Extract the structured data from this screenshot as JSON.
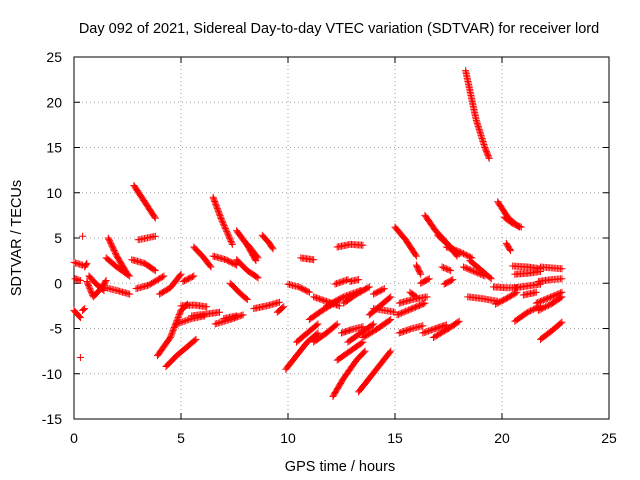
{
  "chart_data": {
    "type": "scatter",
    "title": "Day 092 of 2021, Sidereal Day-to-day VTEC variation (SDTVAR) for receiver lord",
    "xlabel": "GPS time / hours",
    "ylabel": "SDTVAR / TECUs",
    "xlim": [
      0,
      25
    ],
    "ylim": [
      -15,
      25
    ],
    "xticks": [
      "0",
      "5",
      "10",
      "15",
      "20",
      "25"
    ],
    "yticks": [
      "-15",
      "-10",
      "-5",
      "0",
      "5",
      "10",
      "15",
      "20",
      "25"
    ],
    "grid": true,
    "marker": "plus",
    "color": "#ff0000",
    "segments": [
      [
        [
          0.0,
          2.3
        ],
        [
          0.4,
          2.0
        ]
      ],
      [
        [
          0.05,
          0.5
        ],
        [
          0.3,
          0.3
        ]
      ],
      [
        [
          0.0,
          -3.0
        ],
        [
          0.3,
          -3.8
        ]
      ],
      [
        [
          0.4,
          -3.0
        ],
        [
          0.5,
          -2.8
        ]
      ],
      [
        [
          0.5,
          1.8
        ],
        [
          0.6,
          2.2
        ]
      ],
      [
        [
          0.6,
          0.2
        ],
        [
          0.9,
          -1.5
        ],
        [
          1.3,
          -0.5
        ],
        [
          1.5,
          0.3
        ]
      ],
      [
        [
          0.7,
          0.8
        ],
        [
          1.0,
          0.0
        ],
        [
          1.4,
          -0.8
        ]
      ],
      [
        [
          1.6,
          5.0
        ],
        [
          2.0,
          3.0
        ],
        [
          2.5,
          1.0
        ]
      ],
      [
        [
          1.5,
          2.8
        ],
        [
          2.0,
          1.8
        ],
        [
          2.6,
          0.8
        ]
      ],
      [
        [
          1.5,
          -0.5
        ],
        [
          2.0,
          -0.8
        ],
        [
          2.6,
          -1.2
        ]
      ],
      [
        [
          2.8,
          10.8
        ],
        [
          3.3,
          9.0
        ],
        [
          3.8,
          7.2
        ]
      ],
      [
        [
          3.0,
          4.8
        ],
        [
          3.8,
          5.2
        ]
      ],
      [
        [
          2.7,
          2.6
        ],
        [
          3.3,
          2.2
        ],
        [
          3.8,
          1.4
        ]
      ],
      [
        [
          2.9,
          -0.6
        ],
        [
          3.5,
          -0.2
        ],
        [
          4.2,
          0.8
        ]
      ],
      [
        [
          4.0,
          -1.2
        ],
        [
          4.5,
          -0.5
        ],
        [
          5.0,
          1.0
        ]
      ],
      [
        [
          3.9,
          -8.0
        ],
        [
          4.5,
          -6.0
        ],
        [
          5.0,
          -3.0
        ],
        [
          5.3,
          -2.3
        ]
      ],
      [
        [
          4.3,
          -9.2
        ],
        [
          4.8,
          -8.0
        ],
        [
          5.3,
          -7.0
        ],
        [
          5.7,
          -6.2
        ]
      ],
      [
        [
          4.8,
          -4.5
        ],
        [
          5.5,
          -3.9
        ],
        [
          6.1,
          -3.6
        ]
      ],
      [
        [
          5.5,
          -3.6
        ],
        [
          6.2,
          -3.4
        ],
        [
          6.8,
          -3.2
        ]
      ],
      [
        [
          5.0,
          -2.5
        ],
        [
          5.6,
          -2.4
        ],
        [
          6.2,
          -2.6
        ]
      ],
      [
        [
          5.1,
          0.2
        ],
        [
          5.6,
          0.8
        ]
      ],
      [
        [
          5.6,
          4.0
        ],
        [
          6.0,
          3.0
        ],
        [
          6.4,
          1.8
        ]
      ],
      [
        [
          6.5,
          9.5
        ],
        [
          6.9,
          7.0
        ],
        [
          7.4,
          4.3
        ]
      ],
      [
        [
          6.5,
          3.0
        ],
        [
          7.1,
          2.6
        ],
        [
          7.6,
          2.0
        ]
      ],
      [
        [
          6.6,
          -4.5
        ],
        [
          7.3,
          -4.0
        ],
        [
          7.9,
          -3.5
        ]
      ],
      [
        [
          7.0,
          -3.9
        ],
        [
          7.6,
          -3.6
        ]
      ],
      [
        [
          7.3,
          0.0
        ],
        [
          7.8,
          -1.2
        ],
        [
          8.1,
          -1.8
        ]
      ],
      [
        [
          7.6,
          5.8
        ],
        [
          8.1,
          4.2
        ],
        [
          8.5,
          2.5
        ]
      ],
      [
        [
          7.6,
          2.6
        ],
        [
          8.1,
          1.4
        ],
        [
          8.6,
          0.6
        ]
      ],
      [
        [
          8.1,
          4.3
        ],
        [
          8.6,
          2.8
        ]
      ],
      [
        [
          8.4,
          -2.8
        ],
        [
          9.0,
          -2.5
        ],
        [
          9.6,
          -2.1
        ]
      ],
      [
        [
          8.8,
          5.3
        ],
        [
          9.1,
          4.5
        ],
        [
          9.3,
          3.8
        ]
      ],
      [
        [
          9.5,
          -3.2
        ],
        [
          9.8,
          -2.6
        ]
      ],
      [
        [
          10.0,
          -0.1
        ],
        [
          10.5,
          -0.4
        ],
        [
          11.0,
          -1.0
        ]
      ],
      [
        [
          10.6,
          2.8
        ],
        [
          11.2,
          2.6
        ]
      ],
      [
        [
          9.9,
          -9.5
        ],
        [
          10.4,
          -8.0
        ],
        [
          10.9,
          -6.5
        ],
        [
          11.4,
          -5.5
        ]
      ],
      [
        [
          10.4,
          -6.5
        ],
        [
          10.9,
          -5.5
        ],
        [
          11.4,
          -4.5
        ]
      ],
      [
        [
          11.2,
          -6.5
        ],
        [
          11.8,
          -5.5
        ],
        [
          12.3,
          -4.5
        ]
      ],
      [
        [
          11.0,
          -4.0
        ],
        [
          11.6,
          -3.0
        ],
        [
          12.3,
          -2.0
        ]
      ],
      [
        [
          11.2,
          -1.5
        ],
        [
          11.8,
          -2.0
        ],
        [
          12.4,
          -2.5
        ]
      ],
      [
        [
          11.8,
          -2.5
        ],
        [
          12.6,
          -1.5
        ],
        [
          13.4,
          -0.8
        ]
      ],
      [
        [
          12.2,
          -0.1
        ],
        [
          12.8,
          0.4
        ]
      ],
      [
        [
          12.6,
          -2.2
        ],
        [
          13.2,
          -1.2
        ],
        [
          13.8,
          -0.4
        ]
      ],
      [
        [
          12.9,
          0.2
        ],
        [
          13.3,
          0.4
        ]
      ],
      [
        [
          12.3,
          4.0
        ],
        [
          12.9,
          4.3
        ],
        [
          13.5,
          4.2
        ]
      ],
      [
        [
          12.3,
          -8.5
        ],
        [
          12.9,
          -7.5
        ],
        [
          13.5,
          -6.5
        ]
      ],
      [
        [
          12.5,
          -5.5
        ],
        [
          13.0,
          -5.1
        ],
        [
          13.5,
          -4.8
        ]
      ],
      [
        [
          12.1,
          -12.5
        ],
        [
          12.6,
          -10.5
        ],
        [
          13.2,
          -8.5
        ],
        [
          13.6,
          -7.5
        ]
      ],
      [
        [
          12.8,
          -6.5
        ],
        [
          13.4,
          -5.5
        ],
        [
          14.0,
          -4.5
        ]
      ],
      [
        [
          13.3,
          -12.0
        ],
        [
          13.8,
          -10.5
        ],
        [
          14.3,
          -9.0
        ],
        [
          14.8,
          -7.5
        ]
      ],
      [
        [
          13.5,
          -6.0
        ],
        [
          14.2,
          -5.0
        ],
        [
          14.8,
          -4.0
        ]
      ],
      [
        [
          13.8,
          -3.5
        ],
        [
          14.3,
          -2.5
        ],
        [
          14.8,
          -1.5
        ]
      ],
      [
        [
          14.0,
          -1.2
        ],
        [
          14.5,
          -0.6
        ]
      ],
      [
        [
          14.0,
          -2.8
        ],
        [
          14.5,
          -3.0
        ],
        [
          15.0,
          -3.2
        ]
      ],
      [
        [
          15.0,
          6.2
        ],
        [
          15.5,
          4.8
        ],
        [
          16.0,
          3.0
        ]
      ],
      [
        [
          15.2,
          -2.2
        ],
        [
          15.8,
          -1.8
        ],
        [
          16.5,
          -1.5
        ]
      ],
      [
        [
          15.1,
          -3.5
        ],
        [
          15.7,
          -2.9
        ],
        [
          16.4,
          -2.2
        ]
      ],
      [
        [
          15.2,
          -5.5
        ],
        [
          15.8,
          -5.0
        ],
        [
          16.3,
          -4.7
        ]
      ],
      [
        [
          15.7,
          -1.0
        ],
        [
          16.0,
          -1.5
        ]
      ],
      [
        [
          16.0,
          2.0
        ],
        [
          16.2,
          1.0
        ]
      ],
      [
        [
          16.2,
          0.0
        ],
        [
          16.6,
          0.5
        ]
      ],
      [
        [
          16.3,
          -5.5
        ],
        [
          16.9,
          -5.0
        ],
        [
          17.4,
          -4.6
        ]
      ],
      [
        [
          16.8,
          -6.0
        ],
        [
          17.5,
          -5.0
        ],
        [
          18.0,
          -4.2
        ]
      ],
      [
        [
          16.4,
          7.5
        ],
        [
          16.9,
          5.8
        ],
        [
          17.4,
          4.5
        ],
        [
          17.9,
          3.0
        ]
      ],
      [
        [
          17.0,
          5.3
        ],
        [
          17.5,
          4.2
        ],
        [
          18.0,
          3.2
        ]
      ],
      [
        [
          17.3,
          -0.1
        ],
        [
          17.7,
          0.4
        ]
      ],
      [
        [
          17.2,
          1.8
        ],
        [
          17.6,
          1.4
        ]
      ],
      [
        [
          17.4,
          4.0
        ],
        [
          18.0,
          3.5
        ],
        [
          18.6,
          2.8
        ]
      ],
      [
        [
          18.3,
          23.5
        ],
        [
          18.8,
          18.0
        ],
        [
          19.2,
          15.0
        ],
        [
          19.4,
          13.8
        ]
      ],
      [
        [
          18.2,
          1.8
        ],
        [
          18.6,
          1.4
        ],
        [
          19.2,
          0.8
        ]
      ],
      [
        [
          18.5,
          2.5
        ],
        [
          19.0,
          1.5
        ],
        [
          19.5,
          0.5
        ]
      ],
      [
        [
          18.4,
          -1.5
        ],
        [
          19.1,
          -1.7
        ],
        [
          19.8,
          -2.0
        ]
      ],
      [
        [
          19.8,
          9.0
        ],
        [
          20.3,
          7.2
        ],
        [
          20.8,
          6.2
        ]
      ],
      [
        [
          20.1,
          7.3
        ],
        [
          20.5,
          6.6
        ],
        [
          20.9,
          6.2
        ]
      ],
      [
        [
          20.2,
          4.4
        ],
        [
          20.4,
          3.6
        ]
      ],
      [
        [
          19.6,
          -0.4
        ],
        [
          20.2,
          -0.5
        ],
        [
          20.7,
          -0.5
        ]
      ],
      [
        [
          19.7,
          -2.3
        ],
        [
          20.2,
          -1.7
        ],
        [
          20.7,
          -1.0
        ]
      ],
      [
        [
          20.5,
          1.9
        ],
        [
          21.2,
          1.8
        ],
        [
          21.8,
          1.6
        ]
      ],
      [
        [
          20.6,
          1.0
        ],
        [
          21.2,
          1.1
        ],
        [
          21.8,
          1.3
        ]
      ],
      [
        [
          20.6,
          -0.5
        ],
        [
          21.2,
          -0.3
        ],
        [
          21.8,
          -0.1
        ]
      ],
      [
        [
          20.6,
          -4.2
        ],
        [
          21.2,
          -3.2
        ],
        [
          21.8,
          -2.5
        ]
      ],
      [
        [
          21.0,
          -1.3
        ],
        [
          21.6,
          -1.0
        ]
      ],
      [
        [
          21.8,
          1.8
        ],
        [
          22.3,
          1.7
        ],
        [
          22.8,
          1.6
        ]
      ],
      [
        [
          21.7,
          0.2
        ],
        [
          22.3,
          0.4
        ],
        [
          22.8,
          0.5
        ]
      ],
      [
        [
          21.7,
          -3.0
        ],
        [
          22.3,
          -2.3
        ],
        [
          22.8,
          -1.5
        ]
      ],
      [
        [
          21.6,
          -2.2
        ],
        [
          22.2,
          -1.6
        ],
        [
          22.8,
          -1.0
        ]
      ],
      [
        [
          21.8,
          -6.2
        ],
        [
          22.3,
          -5.3
        ],
        [
          22.8,
          -4.3
        ]
      ]
    ],
    "isolated_points": [
      [
        0.3,
        -8.2
      ],
      [
        0.4,
        5.2
      ]
    ]
  }
}
